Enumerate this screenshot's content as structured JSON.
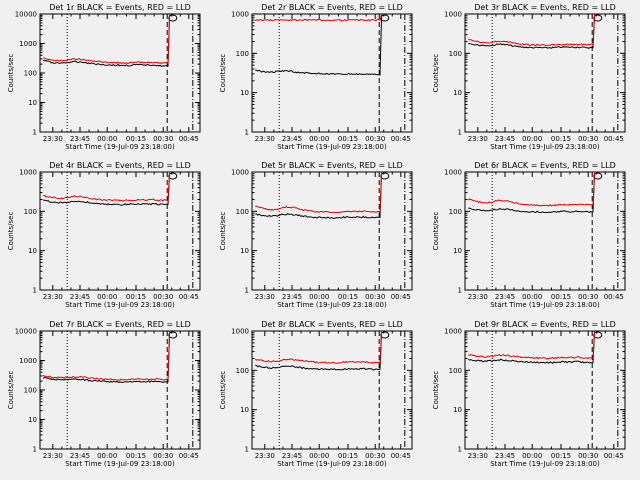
{
  "chart_data": [
    {
      "type": "line",
      "title": "Det 1r BLACK = Events, RED = LLD",
      "xlabel": "Start Time (19-Jul-09 23:18:00)",
      "ylabel": "Counts/sec",
      "yscale": "log",
      "ylim": [
        1,
        10000
      ],
      "yticks": [
        "1",
        "10",
        "100",
        "1000",
        "10000"
      ],
      "xticks": [
        "23:30",
        "23:45",
        "00:00",
        "00:15",
        "00:30",
        "00:45"
      ],
      "series": [
        {
          "name": "Events",
          "values": [
            270,
            230,
            215,
            225,
            240,
            235,
            215,
            200,
            190,
            185,
            180,
            180,
            190,
            185,
            190,
            175,
            172,
            20000
          ]
        },
        {
          "name": "LLD",
          "values": [
            330,
            280,
            260,
            270,
            300,
            290,
            260,
            245,
            235,
            225,
            220,
            220,
            228,
            225,
            230,
            215,
            215,
            20000
          ]
        }
      ]
    },
    {
      "type": "line",
      "title": "Det 2r BLACK = Events, RED = LLD",
      "xlabel": "Start Time (19-Jul-09 23:18:00)",
      "ylabel": "Counts/sec",
      "yscale": "log",
      "ylim": [
        1,
        1000
      ],
      "yticks": [
        "1",
        "10",
        "100",
        "1000"
      ],
      "xticks": [
        "23:30",
        "23:45",
        "00:00",
        "00:15",
        "00:30",
        "00:45"
      ],
      "series": [
        {
          "name": "Events",
          "values": [
            38,
            34,
            33,
            35,
            36,
            34,
            32,
            31,
            31,
            30,
            30,
            29,
            30,
            29,
            30,
            29,
            28,
            2000
          ]
        },
        {
          "name": "LLD",
          "values": [
            700,
            700,
            700,
            700,
            700,
            700,
            700,
            700,
            700,
            700,
            700,
            700,
            700,
            700,
            700,
            700,
            700,
            2000
          ]
        }
      ]
    },
    {
      "type": "line",
      "title": "Det 3r BLACK = Events, RED = LLD",
      "xlabel": "Start Time (19-Jul-09 23:18:00)",
      "ylabel": "Counts/sec",
      "yscale": "log",
      "ylim": [
        1,
        1000
      ],
      "yticks": [
        "1",
        "10",
        "100",
        "1000"
      ],
      "xticks": [
        "23:30",
        "23:45",
        "00:00",
        "00:15",
        "00:30",
        "00:45"
      ],
      "series": [
        {
          "name": "Events",
          "values": [
            180,
            165,
            155,
            160,
            170,
            165,
            150,
            145,
            140,
            140,
            138,
            140,
            145,
            143,
            145,
            140,
            140,
            2000
          ]
        },
        {
          "name": "LLD",
          "values": [
            220,
            200,
            185,
            190,
            205,
            200,
            180,
            170,
            165,
            165,
            160,
            165,
            170,
            168,
            170,
            165,
            165,
            2000
          ]
        }
      ]
    },
    {
      "type": "line",
      "title": "Det 4r BLACK = Events, RED = LLD",
      "xlabel": "Start Time (19-Jul-09 23:18:00)",
      "ylabel": "Counts/sec",
      "yscale": "log",
      "ylim": [
        1,
        1000
      ],
      "yticks": [
        "1",
        "10",
        "100",
        "1000"
      ],
      "xticks": [
        "23:30",
        "23:45",
        "00:00",
        "00:15",
        "00:30",
        "00:45"
      ],
      "series": [
        {
          "name": "Events",
          "values": [
            190,
            175,
            165,
            170,
            180,
            175,
            165,
            155,
            150,
            150,
            148,
            150,
            155,
            153,
            155,
            150,
            150,
            2000
          ]
        },
        {
          "name": "LLD",
          "values": [
            250,
            230,
            215,
            220,
            240,
            235,
            215,
            200,
            195,
            190,
            185,
            190,
            198,
            195,
            200,
            190,
            190,
            2000
          ]
        }
      ]
    },
    {
      "type": "line",
      "title": "Det 5r BLACK = Events, RED = LLD",
      "xlabel": "Start Time (19-Jul-09 23:18:00)",
      "ylabel": "Counts/sec",
      "yscale": "log",
      "ylim": [
        1,
        1000
      ],
      "yticks": [
        "1",
        "10",
        "100",
        "1000"
      ],
      "xticks": [
        "23:30",
        "23:45",
        "00:00",
        "00:15",
        "00:30",
        "00:45"
      ],
      "series": [
        {
          "name": "Events",
          "values": [
            85,
            78,
            75,
            78,
            85,
            82,
            75,
            72,
            70,
            70,
            68,
            70,
            72,
            71,
            72,
            70,
            70,
            2000
          ]
        },
        {
          "name": "LLD",
          "values": [
            135,
            118,
            108,
            115,
            130,
            125,
            110,
            102,
            98,
            96,
            94,
            96,
            100,
            98,
            100,
            97,
            96,
            2000
          ]
        }
      ]
    },
    {
      "type": "line",
      "title": "Det 6r BLACK = Events, RED = LLD",
      "xlabel": "Start Time (19-Jul-09 23:18:00)",
      "ylabel": "Counts/sec",
      "yscale": "log",
      "ylim": [
        1,
        1000
      ],
      "yticks": [
        "1",
        "10",
        "100",
        "1000"
      ],
      "xticks": [
        "23:30",
        "23:45",
        "00:00",
        "00:15",
        "00:30",
        "00:45"
      ],
      "series": [
        {
          "name": "Events",
          "values": [
            120,
            110,
            105,
            108,
            115,
            112,
            105,
            100,
            98,
            97,
            96,
            97,
            100,
            99,
            100,
            97,
            97,
            2000
          ]
        },
        {
          "name": "LLD",
          "values": [
            200,
            180,
            165,
            170,
            190,
            185,
            165,
            150,
            145,
            142,
            140,
            143,
            148,
            146,
            150,
            145,
            145,
            2000
          ]
        }
      ]
    },
    {
      "type": "line",
      "title": "Det 7r BLACK = Events, RED = LLD",
      "xlabel": "Start Time (19-Jul-09 23:18:00)",
      "ylabel": "Counts/sec",
      "yscale": "log",
      "ylim": [
        1,
        10000
      ],
      "yticks": [
        "1",
        "10",
        "100",
        "1000",
        "10000"
      ],
      "xticks": [
        "23:30",
        "23:45",
        "00:00",
        "00:15",
        "00:30",
        "00:45"
      ],
      "series": [
        {
          "name": "Events",
          "values": [
            260,
            235,
            220,
            220,
            230,
            225,
            210,
            200,
            195,
            190,
            188,
            190,
            195,
            193,
            195,
            190,
            190,
            20000
          ]
        },
        {
          "name": "LLD",
          "values": [
            310,
            280,
            260,
            265,
            280,
            275,
            255,
            240,
            232,
            228,
            225,
            228,
            235,
            232,
            235,
            228,
            228,
            20000
          ]
        }
      ]
    },
    {
      "type": "line",
      "title": "Det 8r BLACK = Events, RED = LLD",
      "xlabel": "Start Time (19-Jul-09 23:18:00)",
      "ylabel": "Counts/sec",
      "yscale": "log",
      "ylim": [
        1,
        1000
      ],
      "yticks": [
        "1",
        "10",
        "100",
        "1000"
      ],
      "xticks": [
        "23:30",
        "23:45",
        "00:00",
        "00:15",
        "00:30",
        "00:45"
      ],
      "series": [
        {
          "name": "Events",
          "values": [
            130,
            120,
            115,
            118,
            128,
            125,
            115,
            110,
            108,
            106,
            105,
            106,
            110,
            108,
            110,
            106,
            106,
            2000
          ]
        },
        {
          "name": "LLD",
          "values": [
            190,
            175,
            168,
            172,
            190,
            185,
            172,
            165,
            160,
            158,
            156,
            158,
            165,
            162,
            165,
            158,
            158,
            2000
          ]
        }
      ]
    },
    {
      "type": "line",
      "title": "Det 9r BLACK = Events, RED = LLD",
      "xlabel": "Start Time (19-Jul-09 23:18:00)",
      "ylabel": "Counts/sec",
      "yscale": "log",
      "ylim": [
        1,
        1000
      ],
      "yticks": [
        "1",
        "10",
        "100",
        "1000"
      ],
      "xticks": [
        "23:30",
        "23:45",
        "00:00",
        "00:15",
        "00:30",
        "00:45"
      ],
      "series": [
        {
          "name": "Events",
          "values": [
            190,
            178,
            170,
            175,
            185,
            180,
            170,
            165,
            160,
            158,
            156,
            158,
            165,
            162,
            165,
            158,
            158,
            2000
          ]
        },
        {
          "name": "LLD",
          "values": [
            250,
            230,
            220,
            225,
            245,
            240,
            225,
            215,
            210,
            205,
            202,
            205,
            215,
            210,
            215,
            205,
            205,
            2000
          ]
        }
      ]
    }
  ]
}
